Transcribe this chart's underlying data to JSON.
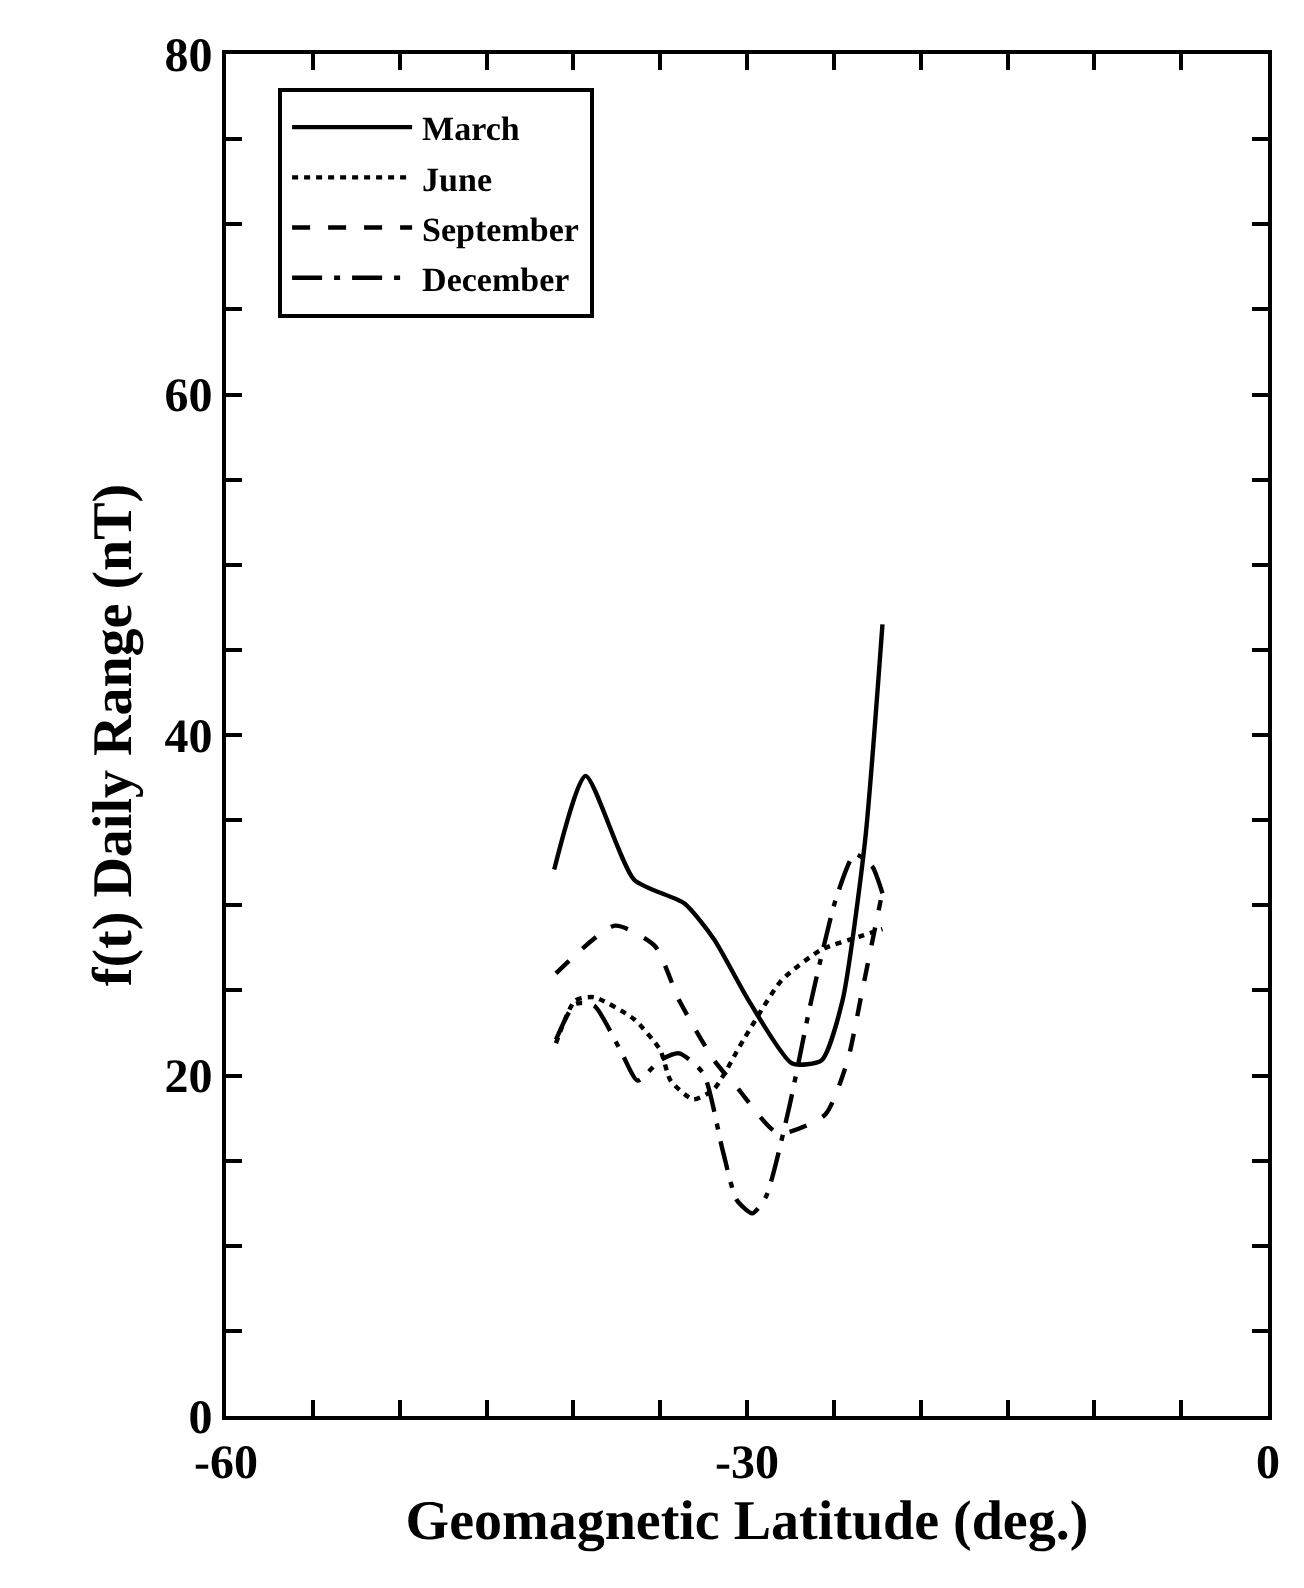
{
  "chart_data": {
    "type": "line",
    "xlabel": "Geomagnetic Latitude (deg.)",
    "ylabel": "f(t) Daily Range (nT)",
    "xlim": [
      -60,
      0
    ],
    "ylim": [
      0,
      80
    ],
    "xticks": [
      -60,
      {
        "value": -55,
        "label": null
      },
      {
        "value": -50,
        "label": null
      },
      {
        "value": -45,
        "label": null
      },
      {
        "value": -40,
        "label": null
      },
      {
        "value": -35,
        "label": null
      },
      -30,
      {
        "value": -25,
        "label": null
      },
      {
        "value": -20,
        "label": null
      },
      {
        "value": -15,
        "label": null
      },
      {
        "value": -10,
        "label": null
      },
      {
        "value": -5,
        "label": null
      },
      0
    ],
    "yticks": [
      0,
      {
        "value": 5,
        "label": null
      },
      {
        "value": 10,
        "label": null
      },
      {
        "value": 15,
        "label": null
      },
      20,
      {
        "value": 25,
        "label": null
      },
      {
        "value": 30,
        "label": null
      },
      {
        "value": 35,
        "label": null
      },
      40,
      {
        "value": 45,
        "label": null
      },
      {
        "value": 50,
        "label": null
      },
      {
        "value": 55,
        "label": null
      },
      60,
      {
        "value": 65,
        "label": null
      },
      {
        "value": 70,
        "label": null
      },
      {
        "value": 75,
        "label": null
      },
      80
    ],
    "legend": "top left",
    "marker": "none",
    "series": [
      {
        "name": "March",
        "color": "#000000",
        "line_style": "solid",
        "x": [
          -41.1,
          -39.3,
          -36.5,
          -33.6,
          -31.9,
          -29.9,
          -27.4,
          -25.7,
          -24.5,
          -23.2,
          -22.2
        ],
        "values": [
          32.1,
          37.6,
          31.5,
          30.1,
          28.0,
          24.4,
          20.7,
          20.9,
          24.4,
          33.8,
          46.5
        ]
      },
      {
        "name": "June",
        "color": "#000000",
        "line_style": "dotted",
        "x": [
          -41.0,
          -39.9,
          -38.8,
          -36.5,
          -35.0,
          -34.4,
          -33.1,
          -31.9,
          -30.2,
          -28.0,
          -25.7,
          -23.4,
          -22.2
        ],
        "values": [
          21.9,
          24.4,
          24.6,
          23.3,
          21.5,
          19.7,
          18.6,
          19.2,
          22.1,
          25.6,
          27.4,
          28.2,
          28.6
        ]
      },
      {
        "name": "September",
        "color": "#000000",
        "line_style": "dashed",
        "x": [
          -41.0,
          -37.6,
          -35.3,
          -33.9,
          -31.9,
          -30.5,
          -28.2,
          -25.5,
          -24.2,
          -23.4,
          -22.6,
          -22.3
        ],
        "values": [
          26.0,
          28.8,
          27.6,
          24.4,
          20.9,
          19.2,
          16.6,
          17.7,
          20.9,
          24.8,
          28.8,
          30.3
        ]
      },
      {
        "name": "December",
        "color": "#000000",
        "line_style": "longdashdot",
        "x": [
          -41.0,
          -39.9,
          -38.8,
          -37.3,
          -36.3,
          -35.0,
          -33.9,
          -32.5,
          -31.4,
          -30.6,
          -29.7,
          -28.9,
          -27.6,
          -26.3,
          -24.9,
          -23.8,
          -22.8,
          -22.2
        ],
        "values": [
          22.1,
          24.2,
          24.1,
          21.5,
          19.7,
          20.9,
          21.3,
          20.1,
          15.6,
          12.7,
          11.9,
          12.9,
          18.0,
          24.4,
          30.3,
          33.0,
          32.3,
          30.7
        ]
      }
    ]
  }
}
